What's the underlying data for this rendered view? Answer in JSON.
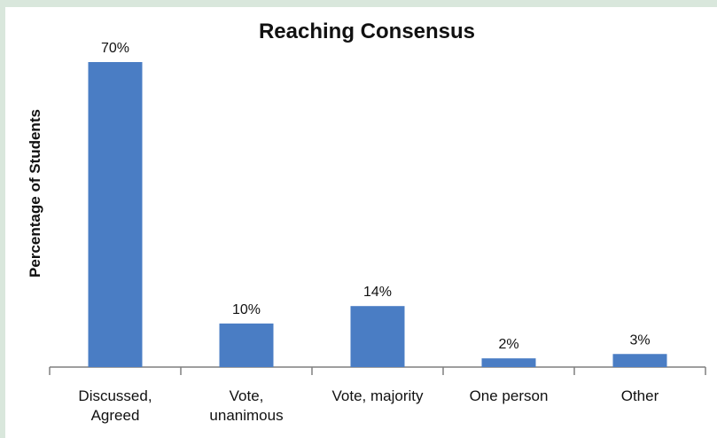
{
  "chart_data": {
    "type": "bar",
    "title": "Reaching Consensus",
    "xlabel": "",
    "ylabel": "Percentage of Students",
    "categories": [
      [
        "Discussed,",
        "Agreed"
      ],
      [
        "Vote,",
        "unanimous"
      ],
      [
        "Vote, majority"
      ],
      [
        "One person"
      ],
      [
        "Other"
      ]
    ],
    "values": [
      70,
      10,
      14,
      2,
      3
    ],
    "data_labels": [
      "70%",
      "10%",
      "14%",
      "2%",
      "3%"
    ],
    "ylim": [
      0,
      70
    ],
    "grid": false,
    "legend": "none",
    "bar_color": "#4a7dc4",
    "axis_color": "#7f7f7f"
  }
}
